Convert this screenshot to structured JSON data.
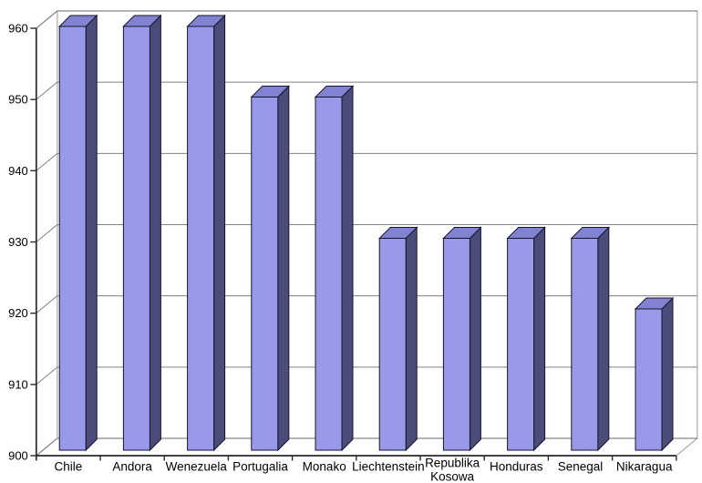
{
  "chart_data": {
    "type": "bar",
    "style": "3d-box",
    "title": "",
    "xlabel": "",
    "ylabel": "",
    "categories": [
      "Chile",
      "Andora",
      "Wenezuela",
      "Portugalia",
      "Monako",
      "Liechtenstein",
      "Republika Kosowa",
      "Honduras",
      "Senegal",
      "Nikaragua"
    ],
    "values": [
      960,
      960,
      960,
      950,
      950,
      930,
      930,
      930,
      930,
      920
    ],
    "ylim": [
      900,
      960
    ],
    "yticks": [
      900,
      910,
      920,
      930,
      940,
      950,
      960
    ],
    "grid": true,
    "legend": false,
    "colors": {
      "background": "#ffffff",
      "bar_front": "#9999ea",
      "bar_top": "#8282d2",
      "bar_side": "#4c4c7a",
      "bar_outline": "#15152e",
      "gridline": "#808080",
      "frame_edge": "#b0b0b0",
      "axis": "#2a2a2a",
      "text": "#000000"
    }
  }
}
